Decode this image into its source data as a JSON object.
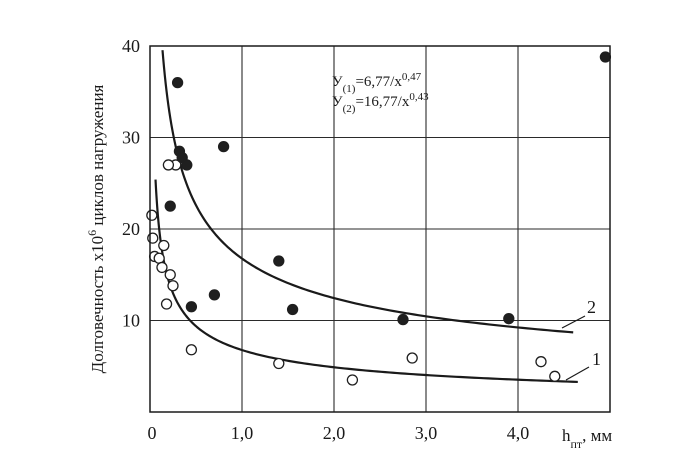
{
  "chart_data": {
    "type": "scatter",
    "ylabel_main": "Долговечность х10",
    "ylabel_sup": "6",
    "ylabel_tail": " циклов нагружения",
    "xlabel_main": "h",
    "xlabel_sub": "пт",
    "xlabel_tail": ", мм",
    "xlim": [
      0,
      5
    ],
    "ylim": [
      0,
      40
    ],
    "x_ticks": [
      {
        "value": 0,
        "label": "0"
      },
      {
        "value": 1,
        "label": "1,0"
      },
      {
        "value": 2,
        "label": "2,0"
      },
      {
        "value": 3,
        "label": "3,0"
      },
      {
        "value": 4,
        "label": "4,0"
      }
    ],
    "y_ticks": [
      {
        "value": 10,
        "label": "10"
      },
      {
        "value": 20,
        "label": "20"
      },
      {
        "value": 30,
        "label": "30"
      },
      {
        "value": 40,
        "label": "40"
      }
    ],
    "grid": true,
    "equations": [
      {
        "lhs": "У",
        "sub": "(1)",
        "rhs": "=6,77/x",
        "sup": "0,47"
      },
      {
        "lhs": "У",
        "sub": "(2)",
        "rhs": "=16,77/x",
        "sup": "0,43"
      }
    ],
    "curves": [
      {
        "label": "1",
        "a": 6.77,
        "b": 0.47,
        "x_start": 0.06,
        "x_end": 4.65
      },
      {
        "label": "2",
        "a": 16.77,
        "b": 0.43,
        "x_start": 0.05,
        "x_end": 4.6
      }
    ],
    "series": [
      {
        "marker": "open-circle",
        "x": [
          0.02,
          0.03,
          0.05,
          0.1,
          0.13,
          0.15,
          0.18,
          0.22,
          0.25,
          0.28,
          0.2,
          0.45,
          1.4,
          2.2,
          2.85,
          4.25,
          4.4
        ],
        "y": [
          21.5,
          19,
          17,
          16.8,
          15.8,
          18.2,
          11.8,
          15,
          13.8,
          27,
          27,
          6.8,
          5.3,
          3.5,
          5.9,
          5.5,
          3.9
        ]
      },
      {
        "marker": "filled-circle",
        "x": [
          0.3,
          0.32,
          0.35,
          0.4,
          0.22,
          0.45,
          0.8,
          0.7,
          1.4,
          1.55,
          2.75,
          3.9,
          4.95
        ],
        "y": [
          36,
          28.5,
          27.8,
          27,
          22.5,
          11.5,
          29,
          12.8,
          16.5,
          11.2,
          10.1,
          10.2,
          38.8
        ]
      }
    ]
  }
}
